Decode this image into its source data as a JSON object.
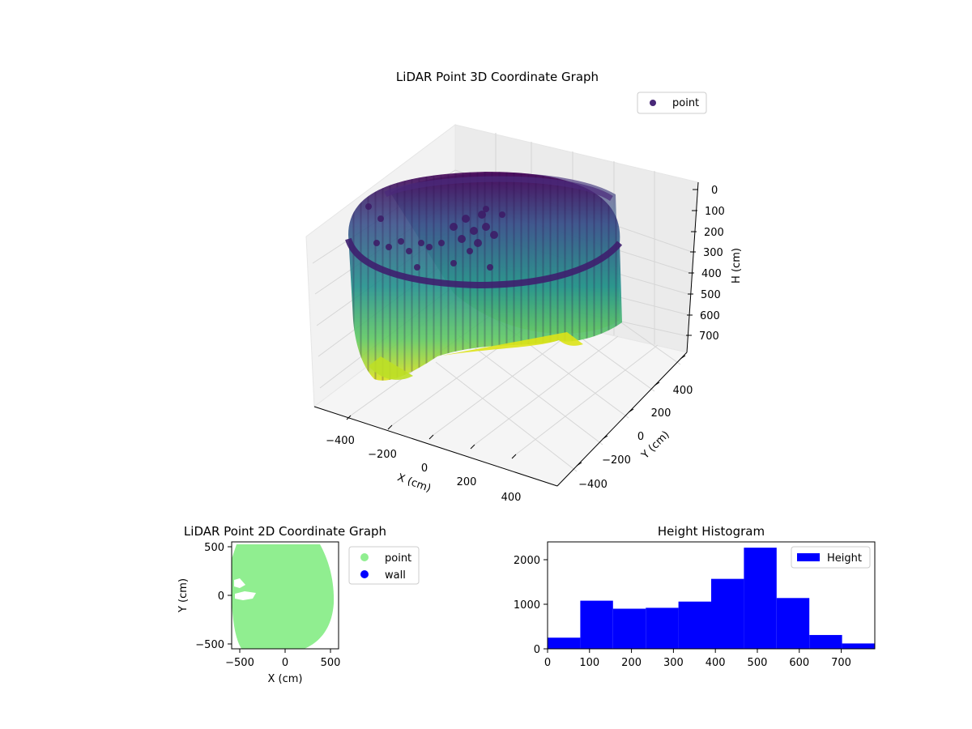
{
  "chart_data": [
    {
      "type": "scatter",
      "projection": "3d",
      "title": "LiDAR Point 3D Coordinate Graph",
      "xlabel": "X (cm)",
      "ylabel": "Y (cm)",
      "zlabel": "H (cm)",
      "x_ticks": [
        "−400",
        "−200",
        "0",
        "200",
        "400"
      ],
      "y_ticks": [
        "−400",
        "−200",
        "0",
        "200",
        "400"
      ],
      "z_ticks": [
        "0",
        "100",
        "200",
        "300",
        "400",
        "500",
        "600",
        "700"
      ],
      "z_inverted": true,
      "colormap": "viridis",
      "legend": {
        "entries": [
          "point"
        ],
        "placement": "top-right"
      },
      "grid": true,
      "shape_description": "cylindrical wall of points, radius approx 500 cm, heights 0–780 cm, dark purple at top rim, yellow at bottom",
      "point_color_top": "#440154",
      "point_color_bottom": "#dde318"
    },
    {
      "type": "scatter",
      "title": "LiDAR Point 2D Coordinate Graph",
      "xlabel": "X (cm)",
      "ylabel": "Y (cm)",
      "xlim": [
        -560,
        560
      ],
      "ylim": [
        -560,
        560
      ],
      "x_ticks": [
        "−500",
        "0",
        "500"
      ],
      "y_ticks": [
        "−500",
        "0",
        "500"
      ],
      "legend": {
        "entries": [
          {
            "label": "point",
            "color": "#90ee90"
          },
          {
            "label": "wall",
            "color": "#0000ff"
          }
        ],
        "placement": "outside-right"
      },
      "region_color": "#90ee90"
    },
    {
      "type": "bar",
      "subtype": "histogram",
      "title": "Height Histogram",
      "xlim": [
        0,
        780
      ],
      "ylim": [
        0,
        2400
      ],
      "x_ticks": [
        "0",
        "100",
        "200",
        "300",
        "400",
        "500",
        "600",
        "700"
      ],
      "y_ticks": [
        "0",
        "1000",
        "2000"
      ],
      "bin_edges": [
        0,
        78,
        156,
        234,
        312,
        390,
        468,
        546,
        624,
        702,
        780
      ],
      "values": [
        250,
        1080,
        900,
        920,
        1060,
        1570,
        2270,
        1140,
        310,
        120
      ],
      "color": "#0000ff",
      "legend": {
        "entries": [
          "Height"
        ],
        "placement": "top-right"
      }
    }
  ]
}
